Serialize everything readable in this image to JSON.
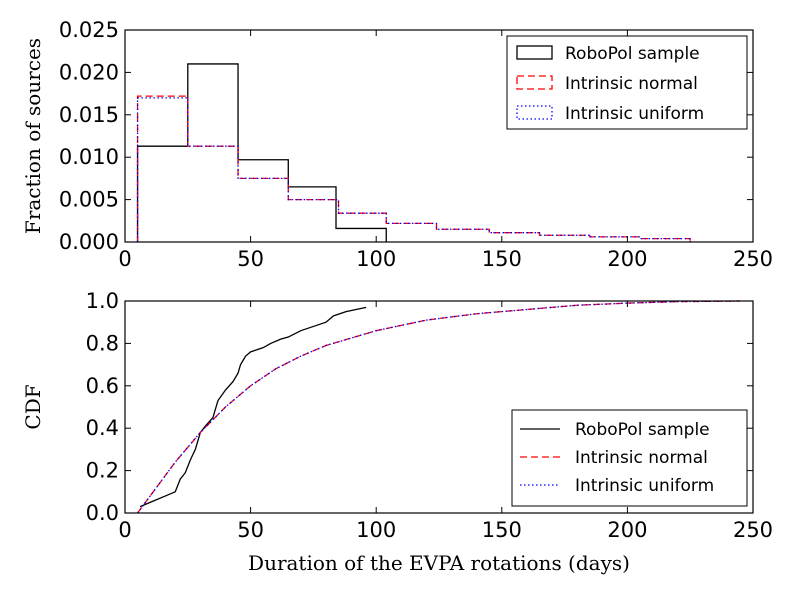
{
  "chart_data": [
    {
      "type": "histogram",
      "panel": "top",
      "xlabel": "",
      "ylabel": "Fraction of sources",
      "xlim": [
        0,
        250
      ],
      "ylim": [
        0,
        0.025
      ],
      "xticks": [
        "0",
        "50",
        "100",
        "150",
        "200",
        "250"
      ],
      "yticks": [
        "0.000",
        "0.005",
        "0.010",
        "0.015",
        "0.020",
        "0.025"
      ],
      "legend_position": "top-right",
      "series": [
        {
          "name": "RoboPol sample",
          "style": "solid",
          "color": "#000000",
          "bin_edges": [
            5,
            25,
            45,
            65,
            84,
            104
          ],
          "values": [
            0.0113,
            0.021,
            0.0097,
            0.0065,
            0.0016
          ]
        },
        {
          "name": "Intrinsic normal",
          "style": "dashed",
          "color": "#ff0000",
          "bin_edges": [
            5,
            25,
            45,
            65,
            85,
            104,
            124,
            145,
            165,
            185,
            205,
            225
          ],
          "values": [
            0.0172,
            0.0113,
            0.0075,
            0.005,
            0.0034,
            0.0022,
            0.0015,
            0.0011,
            0.0008,
            0.0006,
            0.0004
          ]
        },
        {
          "name": "Intrinsic uniform",
          "style": "dotted",
          "color": "#0000ff",
          "bin_edges": [
            5,
            25,
            45,
            65,
            85,
            104,
            124,
            145,
            165,
            185,
            205,
            225
          ],
          "values": [
            0.017,
            0.0113,
            0.0075,
            0.005,
            0.0034,
            0.0022,
            0.0015,
            0.0011,
            0.0008,
            0.0006,
            0.0004
          ]
        }
      ]
    },
    {
      "type": "line",
      "panel": "bottom",
      "xlabel": "Duration of the EVPA rotations (days)",
      "ylabel": "CDF",
      "xlim": [
        0,
        250
      ],
      "ylim": [
        0,
        1.0
      ],
      "xticks": [
        "0",
        "50",
        "100",
        "150",
        "200",
        "250"
      ],
      "yticks": [
        "0.0",
        "0.2",
        "0.4",
        "0.6",
        "0.8",
        "1.0"
      ],
      "legend_position": "bottom-right",
      "series": [
        {
          "name": "RoboPol sample",
          "style": "solid",
          "color": "#000000",
          "x": [
            6,
            8,
            12,
            16,
            20,
            22,
            24,
            26,
            28,
            30,
            32,
            35,
            37,
            40,
            43,
            45,
            46,
            47,
            48,
            50,
            55,
            58,
            62,
            65,
            70,
            75,
            80,
            83,
            88,
            92,
            96
          ],
          "y": [
            0.03,
            0.04,
            0.06,
            0.08,
            0.1,
            0.16,
            0.19,
            0.25,
            0.3,
            0.38,
            0.41,
            0.45,
            0.53,
            0.58,
            0.62,
            0.66,
            0.7,
            0.72,
            0.74,
            0.76,
            0.78,
            0.8,
            0.82,
            0.83,
            0.86,
            0.88,
            0.9,
            0.93,
            0.95,
            0.96,
            0.97
          ]
        },
        {
          "name": "Intrinsic normal",
          "style": "dashed",
          "color": "#ff0000",
          "x": [
            5,
            10,
            20,
            30,
            40,
            50,
            60,
            70,
            80,
            100,
            120,
            140,
            160,
            180,
            200,
            220,
            245
          ],
          "y": [
            0.0,
            0.08,
            0.24,
            0.38,
            0.5,
            0.6,
            0.68,
            0.74,
            0.79,
            0.86,
            0.91,
            0.94,
            0.96,
            0.98,
            0.99,
            0.997,
            1.0
          ]
        },
        {
          "name": "Intrinsic uniform",
          "style": "dotted",
          "color": "#0000ff",
          "x": [
            5,
            10,
            20,
            30,
            40,
            50,
            60,
            70,
            80,
            100,
            120,
            140,
            160,
            180,
            200,
            220,
            245
          ],
          "y": [
            0.0,
            0.08,
            0.24,
            0.38,
            0.5,
            0.6,
            0.68,
            0.74,
            0.79,
            0.86,
            0.91,
            0.94,
            0.96,
            0.98,
            0.99,
            0.997,
            1.0
          ]
        }
      ]
    }
  ]
}
